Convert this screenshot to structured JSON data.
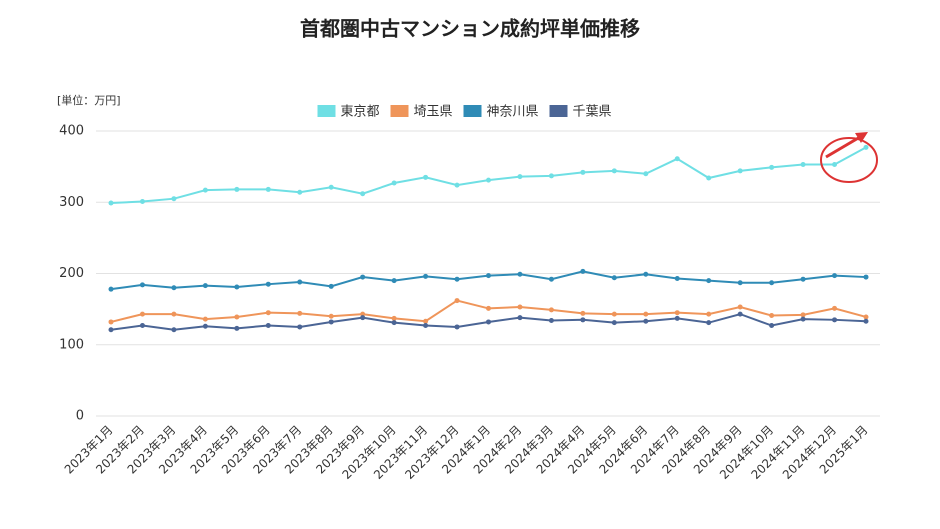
{
  "chart_data": {
    "type": "line",
    "title": "首都圏中古マンション成約坪単価推移",
    "ylabel": "[単位：万円]",
    "categories": [
      "2023年1月",
      "2023年2月",
      "2023年3月",
      "2023年4月",
      "2023年5月",
      "2023年6月",
      "2023年7月",
      "2023年8月",
      "2023年9月",
      "2023年10月",
      "2023年11月",
      "2023年12月",
      "2024年1月",
      "2024年2月",
      "2024年3月",
      "2024年4月",
      "2024年5月",
      "2024年6月",
      "2024年7月",
      "2024年8月",
      "2024年9月",
      "2024年10月",
      "2024年11月",
      "2024年12月",
      "2025年1月"
    ],
    "series": [
      {
        "name": "東京都",
        "color": "#6fdfe4",
        "values": [
          299,
          301,
          305,
          317,
          318,
          318,
          314,
          321,
          312,
          327,
          335,
          324,
          331,
          336,
          337,
          342,
          344,
          340,
          361,
          334,
          344,
          349,
          353,
          353,
          377
        ]
      },
      {
        "name": "埼玉県",
        "color": "#ef955a",
        "values": [
          132,
          143,
          143,
          136,
          139,
          145,
          144,
          140,
          143,
          137,
          133,
          162,
          151,
          153,
          149,
          144,
          143,
          143,
          145,
          143,
          153,
          141,
          142,
          151,
          139
        ]
      },
      {
        "name": "神奈川県",
        "color": "#2f8bb6",
        "values": [
          178,
          184,
          180,
          183,
          181,
          185,
          188,
          182,
          195,
          190,
          196,
          192,
          197,
          199,
          192,
          203,
          194,
          199,
          193,
          190,
          187,
          187,
          192,
          197,
          195
        ]
      },
      {
        "name": "千葉県",
        "color": "#4b6595",
        "values": [
          121,
          127,
          121,
          126,
          123,
          127,
          125,
          132,
          138,
          131,
          127,
          125,
          132,
          138,
          134,
          135,
          131,
          133,
          137,
          131,
          143,
          127,
          136,
          135,
          133
        ]
      }
    ],
    "ylim": [
      0,
      400
    ],
    "yticks": [
      0,
      100,
      200,
      300,
      400
    ],
    "grid": true
  }
}
